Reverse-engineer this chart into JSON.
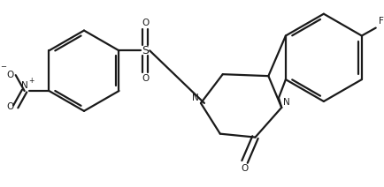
{
  "background_color": "#ffffff",
  "line_color": "#1a1a1a",
  "line_width": 1.6,
  "font_size": 7.5,
  "figsize": [
    4.34,
    2.12
  ],
  "dpi": 100,
  "xlim": [
    0,
    434
  ],
  "ylim": [
    0,
    212
  ]
}
